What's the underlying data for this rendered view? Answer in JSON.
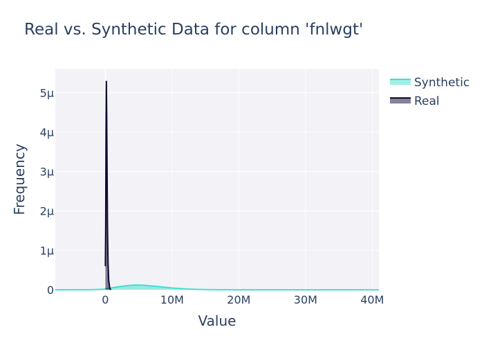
{
  "chart_data": {
    "type": "area",
    "title": "Real vs. Synthetic Data for column 'fnlwgt'",
    "xlabel": "Value",
    "ylabel": "Frequency",
    "xlim": [
      -7500000,
      41000000
    ],
    "ylim": [
      0,
      5.6e-06
    ],
    "grid": true,
    "legend_position": "top-right",
    "x_ticks": [
      {
        "value": 0,
        "label": "0"
      },
      {
        "value": 10000000,
        "label": "10M"
      },
      {
        "value": 20000000,
        "label": "20M"
      },
      {
        "value": 30000000,
        "label": "30M"
      },
      {
        "value": 40000000,
        "label": "40M"
      }
    ],
    "y_ticks": [
      {
        "value": 0,
        "label": "0"
      },
      {
        "value": 1e-06,
        "label": "1μ"
      },
      {
        "value": 2e-06,
        "label": "2μ"
      },
      {
        "value": 3e-06,
        "label": "3μ"
      },
      {
        "value": 4e-06,
        "label": "4μ"
      },
      {
        "value": 5e-06,
        "label": "5μ"
      }
    ],
    "series": [
      {
        "name": "Synthetic",
        "color": "#40e0d0",
        "x": [
          -7500000,
          -2000000,
          -500000,
          500000,
          1500000,
          2500000,
          3500000,
          4500000,
          5500000,
          6500000,
          8000000,
          10000000,
          12000000,
          14000000,
          16000000,
          20000000,
          30000000,
          41000000
        ],
        "y": [
          0,
          3e-09,
          1e-08,
          3.5e-08,
          6.5e-08,
          9e-08,
          1.1e-07,
          1.2e-07,
          1.18e-07,
          1.05e-07,
          8e-08,
          4.5e-08,
          2.2e-08,
          8e-09,
          2e-09,
          0,
          0,
          0
        ]
      },
      {
        "name": "Real",
        "color": "#0d0630",
        "x": [
          0,
          50000,
          100000,
          150000,
          200000,
          260000,
          320000,
          400000,
          500000,
          650000,
          800000
        ],
        "y": [
          6e-07,
          1.6e-06,
          4e-06,
          5.3e-06,
          4.5e-06,
          3e-06,
          1.6e-06,
          7e-07,
          2.5e-07,
          5e-08,
          0
        ]
      }
    ]
  }
}
